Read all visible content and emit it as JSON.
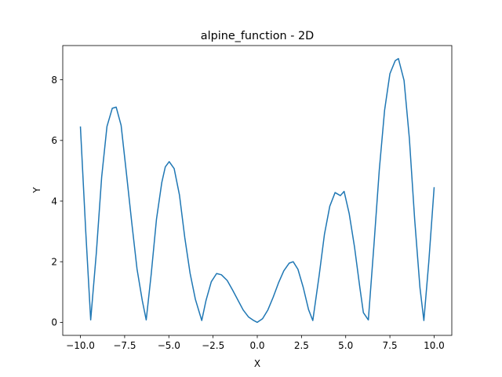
{
  "chart_data": {
    "type": "line",
    "title": "alpine_function - 2D",
    "xlabel": "X",
    "ylabel": "Y",
    "xlim": [
      -11.0,
      11.0
    ],
    "ylim": [
      -0.43,
      9.13
    ],
    "xticks": [
      -10.0,
      -7.5,
      -5.0,
      -2.5,
      0.0,
      2.5,
      5.0,
      7.5,
      10.0
    ],
    "xtick_labels": [
      "−10.0",
      "−7.5",
      "−5.0",
      "−2.5",
      "0.0",
      "2.5",
      "5.0",
      "7.5",
      "10.0"
    ],
    "yticks": [
      0,
      2,
      4,
      6,
      8
    ],
    "ytick_labels": [
      "0",
      "2",
      "4",
      "6",
      "8"
    ],
    "grid": false,
    "color": "#1f77b4",
    "series": [
      {
        "x": [
          -10.0,
          -9.7,
          -9.42,
          -9.1,
          -8.8,
          -8.5,
          -8.2,
          -7.98,
          -7.7,
          -7.4,
          -7.1,
          -6.8,
          -6.5,
          -6.28,
          -6.0,
          -5.7,
          -5.4,
          -5.2,
          -4.98,
          -4.7,
          -4.4,
          -4.1,
          -3.8,
          -3.5,
          -3.14,
          -2.9,
          -2.6,
          -2.3,
          -2.03,
          -1.7,
          -1.4,
          -1.1,
          -0.8,
          -0.5,
          -0.2,
          0.0,
          0.3,
          0.6,
          0.9,
          1.2,
          1.5,
          1.8,
          2.03,
          2.3,
          2.6,
          2.9,
          3.14,
          3.5,
          3.8,
          4.1,
          4.4,
          4.7,
          4.91,
          5.2,
          5.5,
          5.8,
          6.0,
          6.28,
          6.6,
          6.9,
          7.2,
          7.5,
          7.8,
          7.98,
          8.3,
          8.6,
          8.9,
          9.2,
          9.42,
          9.7,
          10.0
        ],
        "y": [
          6.44,
          3.0,
          0.08,
          2.3,
          4.79,
          6.46,
          7.06,
          7.1,
          6.5,
          4.92,
          3.3,
          1.76,
          0.71,
          0.08,
          1.58,
          3.4,
          4.61,
          5.13,
          5.3,
          5.07,
          4.2,
          2.8,
          1.62,
          0.76,
          0.06,
          0.72,
          1.34,
          1.61,
          1.57,
          1.38,
          1.07,
          0.74,
          0.41,
          0.18,
          0.06,
          0.0,
          0.12,
          0.41,
          0.83,
          1.3,
          1.7,
          1.95,
          2.0,
          1.75,
          1.15,
          0.42,
          0.06,
          1.55,
          2.91,
          3.83,
          4.28,
          4.18,
          4.32,
          3.58,
          2.48,
          1.15,
          0.32,
          0.08,
          2.57,
          5.03,
          7.0,
          8.2,
          8.63,
          8.7,
          7.98,
          6.07,
          3.4,
          1.14,
          0.06,
          2.0,
          4.44
        ]
      }
    ]
  }
}
